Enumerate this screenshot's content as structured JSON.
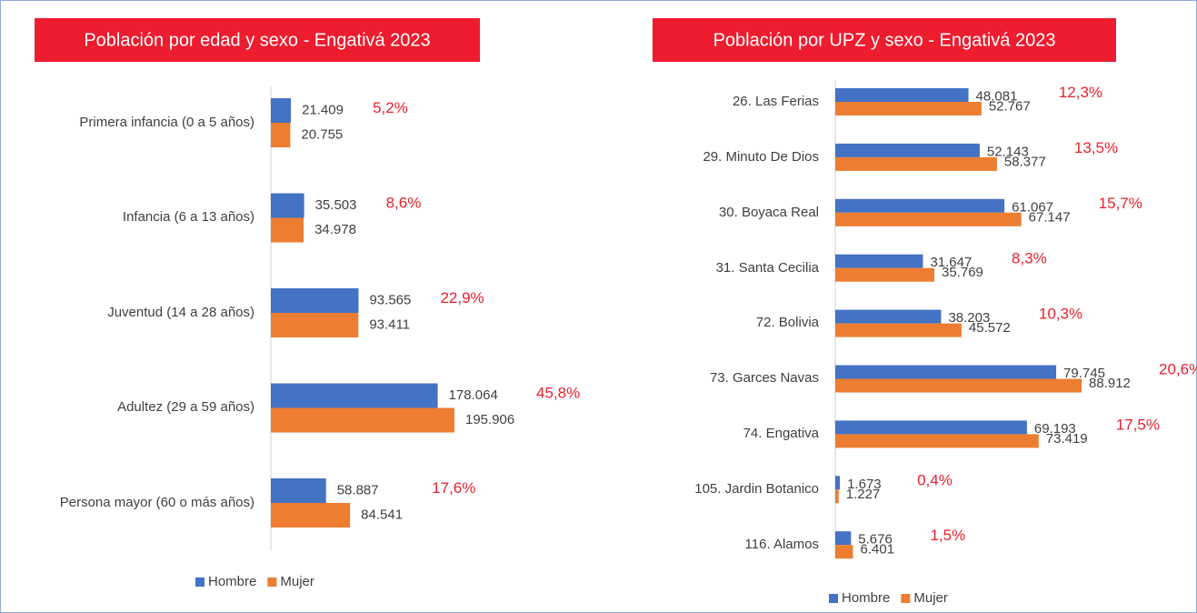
{
  "chart_data": [
    {
      "type": "bar",
      "orientation": "horizontal",
      "title": "Población por edad y sexo - Engativá 2023",
      "categories": [
        "Primera infancia (0 a 5 años)",
        "Infancia (6 a 13 años)",
        "Juventud (14 a 28 años)",
        "Adultez (29 a 59 años)",
        "Persona mayor (60 o más años)"
      ],
      "series": [
        {
          "name": "Hombre",
          "color": "#4472c4",
          "values": [
            21409,
            35503,
            93565,
            178064,
            58887
          ],
          "value_labels": [
            "21.409",
            "35.503",
            "93.565",
            "178.064",
            "58.887"
          ]
        },
        {
          "name": "Mujer",
          "color": "#ed7d31",
          "values": [
            20755,
            34978,
            93411,
            195906,
            84541
          ],
          "value_labels": [
            "20.755",
            "34.978",
            "93.411",
            "195.906",
            "84.541"
          ]
        }
      ],
      "share_labels": [
        "5,2%",
        "8,6%",
        "22,9%",
        "45,8%",
        "17,6%"
      ]
    },
    {
      "type": "bar",
      "orientation": "horizontal",
      "title": "Población por UPZ y sexo - Engativá  2023",
      "categories": [
        "26. Las Ferias",
        "29. Minuto De Dios",
        "30. Boyaca Real",
        "31. Santa Cecilia",
        "72. Bolivia",
        "73. Garces Navas",
        "74. Engativa",
        "105. Jardin Botanico",
        "116. Alamos"
      ],
      "series": [
        {
          "name": "Hombre",
          "color": "#4472c4",
          "values": [
            48081,
            52143,
            61067,
            31647,
            38203,
            79745,
            69193,
            1673,
            5676
          ],
          "value_labels": [
            "48.081",
            "52.143",
            "61.067",
            "31.647",
            "38.203",
            "79.745",
            "69.193",
            "1.673",
            "5.676"
          ]
        },
        {
          "name": "Mujer",
          "color": "#ed7d31",
          "values": [
            52767,
            58377,
            67147,
            35769,
            45572,
            88912,
            73419,
            1227,
            6401
          ],
          "value_labels": [
            "52.767",
            "58.377",
            "67.147",
            "35.769",
            "45.572",
            "88.912",
            "73.419",
            "1.227",
            "6.401"
          ]
        }
      ],
      "share_labels": [
        "12,3%",
        "13,5%",
        "15,7%",
        "8,3%",
        "10,3%",
        "20,6%",
        "17,5%",
        "0,4%",
        "1,5%"
      ]
    }
  ]
}
